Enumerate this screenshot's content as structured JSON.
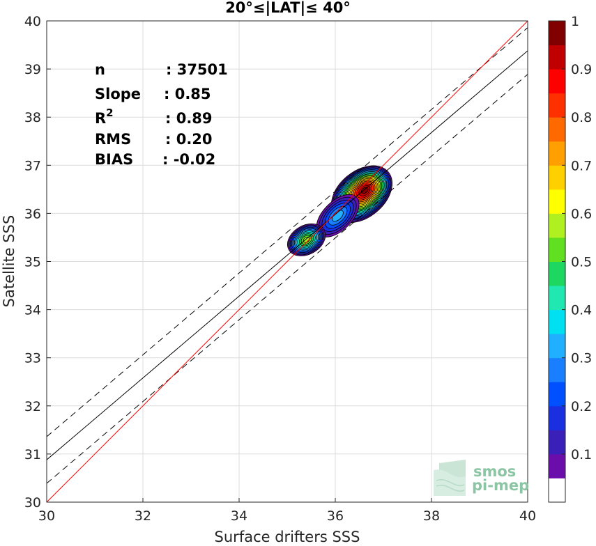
{
  "chart_data": {
    "type": "scatter",
    "title": "20°≤|LAT|≤ 40°",
    "xlabel": "Surface drifters SSS",
    "ylabel": "Satellite SSS",
    "xlim": [
      30,
      40
    ],
    "ylim": [
      30,
      40
    ],
    "xticks": [
      "30",
      "32",
      "34",
      "36",
      "38",
      "40"
    ],
    "yticks": [
      "30",
      "31",
      "32",
      "33",
      "34",
      "35",
      "36",
      "37",
      "38",
      "39",
      "40"
    ],
    "grid": true,
    "stats": [
      {
        "label": "n",
        "value": ": 37501"
      },
      {
        "label": "Slope",
        "value": ": 0.85"
      },
      {
        "label": "R",
        "sup": "2",
        "value": ": 0.89"
      },
      {
        "label": "RMS",
        "value": ": 0.20"
      },
      {
        "label": "BIAS",
        "value": ": -0.02"
      }
    ],
    "lines": {
      "one_to_one": {
        "color": "#ff0000",
        "x": [
          30,
          40
        ],
        "y": [
          30,
          40
        ]
      },
      "regression": {
        "color": "#000000",
        "slope": 0.85,
        "x": [
          30,
          40
        ],
        "y": [
          30.88,
          39.38
        ]
      },
      "upper_bound": {
        "color": "#000000",
        "dash": true,
        "x": [
          30,
          40
        ],
        "y": [
          31.36,
          39.86
        ]
      },
      "lower_bound": {
        "color": "#000000",
        "dash": true,
        "x": [
          30,
          40
        ],
        "y": [
          30.39,
          38.89
        ]
      }
    },
    "density_clusters": [
      {
        "name": "main",
        "cx": 36.55,
        "cy": 36.4,
        "rx": 0.72,
        "ry": 0.48,
        "angle_deg": 40,
        "peak": 1.0
      },
      {
        "name": "bridge",
        "cx": 36.05,
        "cy": 35.95,
        "rx": 0.55,
        "ry": 0.3,
        "angle_deg": 45,
        "peak": 0.3
      },
      {
        "name": "secondary",
        "cx": 35.4,
        "cy": 35.45,
        "rx": 0.42,
        "ry": 0.3,
        "angle_deg": 30,
        "peak": 0.6
      }
    ],
    "colorbar": {
      "min": 0,
      "max": 1,
      "ticks": [
        "0.1",
        "0.2",
        "0.3",
        "0.4",
        "0.5",
        "0.6",
        "0.7",
        "0.8",
        "0.9",
        "1"
      ],
      "colors": [
        "#ffffff",
        "#6a0dab",
        "#3a1fb8",
        "#1a2fe0",
        "#0050ff",
        "#1a7fff",
        "#20b0ff",
        "#00e0f0",
        "#20e8b0",
        "#1ed760",
        "#60e020",
        "#b0f020",
        "#ffff00",
        "#ffd000",
        "#ffa000",
        "#ff6a00",
        "#ff3000",
        "#ff0000",
        "#c00000",
        "#800000"
      ]
    },
    "watermark": {
      "line1": "smos",
      "line2": "pi-mep"
    }
  }
}
